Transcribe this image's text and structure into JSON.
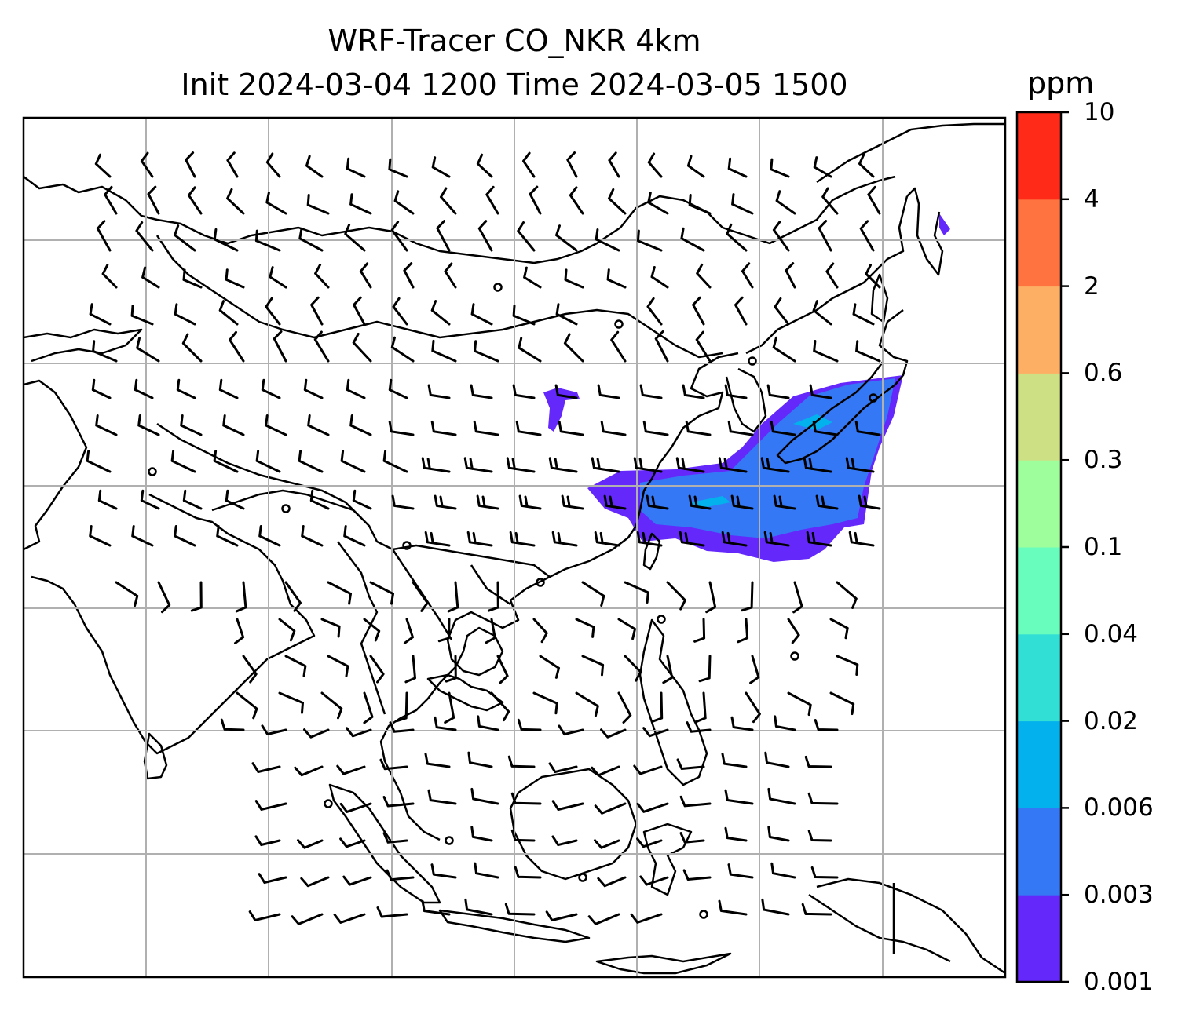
{
  "title": {
    "line1": "WRF-Tracer CO_NKR 4km",
    "line2": "Init 2024-03-04 1200 Time 2024-03-05 1500"
  },
  "colorbar": {
    "unit": "ppm",
    "levels": [
      "0.001",
      "0.003",
      "0.006",
      "0.02",
      "0.04",
      "0.1",
      "0.3",
      "0.6",
      "2",
      "4",
      "10"
    ],
    "colors": [
      "#6528fb",
      "#3478f5",
      "#03b2ec",
      "#31dfd5",
      "#68fdbc",
      "#9ffe9c",
      "#cde083",
      "#fdb064",
      "#ff7340",
      "#ff2a17"
    ]
  },
  "map": {
    "layers": [
      "coastlines",
      "gridlines",
      "wind-barbs",
      "tracer-concentration"
    ],
    "plume_colors": {
      "outer": "#6528fb",
      "inner": "#3478f5",
      "core": "#03b2ec"
    }
  }
}
